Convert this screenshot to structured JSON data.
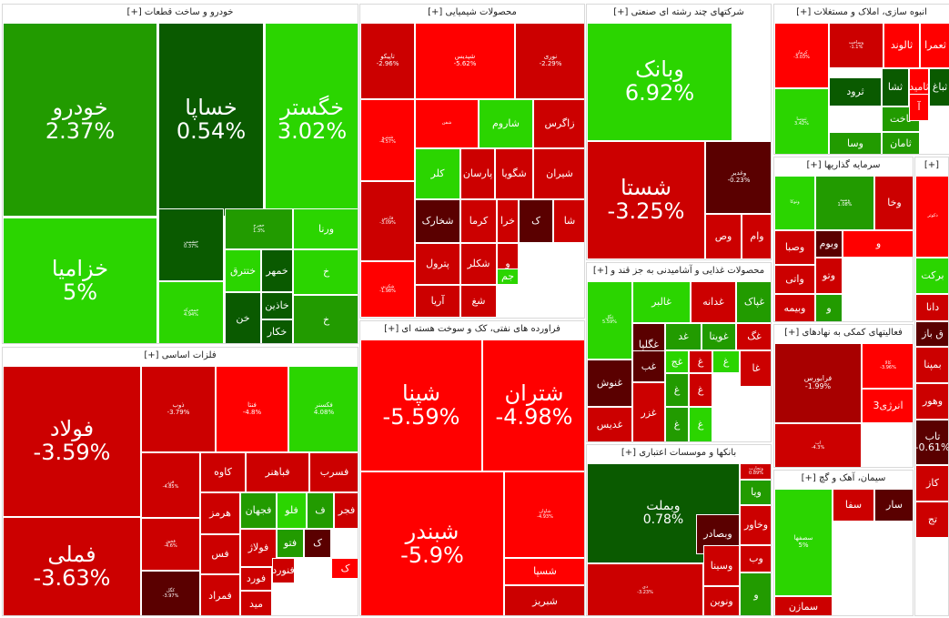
{
  "chart_data": {
    "type": "treemap",
    "colors": {
      "positive_strong": "#2bd500",
      "positive_mid": "#229b00",
      "positive_dark": "#0a5a00",
      "negative_strong": "#ff0000",
      "negative_mid": "#cc0000",
      "negative_dark": "#5a0000"
    },
    "sectors": [
      {
        "name": "خودرو و ساخت قطعات [+]",
        "stocks": [
          {
            "name": "خودرو",
            "change": "2.37%"
          },
          {
            "name": "خساپا",
            "change": "0.54%"
          },
          {
            "name": "خگستر",
            "change": "3.02%"
          },
          {
            "name": "خزامیا",
            "change": "5%"
          },
          {
            "name": "خشمبی",
            "change": "0.37%"
          },
          {
            "name": "خمحرکه",
            "change": "4.94%"
          },
          {
            "name": "خچرخ",
            "change": "1.3%"
          },
          {
            "name": "ورنا",
            "change": ""
          },
          {
            "name": "ختترق",
            "change": ""
          },
          {
            "name": "خمهر",
            "change": ""
          },
          {
            "name": "خاذین",
            "change": ""
          },
          {
            "name": "خکار",
            "change": ""
          },
          {
            "name": "خن",
            "change": ""
          },
          {
            "name": "خ",
            "change": ""
          },
          {
            "name": "خ",
            "change": ""
          }
        ]
      },
      {
        "name": "محصولات شیمیایی [+]",
        "stocks": [
          {
            "name": "تاپیکو",
            "change": "-2.96%"
          },
          {
            "name": "شپدیس",
            "change": "-5.62%"
          },
          {
            "name": "نوری",
            "change": "-2.29%"
          },
          {
            "name": "شپترو",
            "change": "-4.57%"
          },
          {
            "name": "شفن",
            "change": ""
          },
          {
            "name": "شاروم",
            "change": ""
          },
          {
            "name": "زاگرس",
            "change": ""
          },
          {
            "name": "فارس",
            "change": "-3.09%"
          },
          {
            "name": "کلر",
            "change": ""
          },
          {
            "name": "پارسان",
            "change": ""
          },
          {
            "name": "شگویا",
            "change": ""
          },
          {
            "name": "شیران",
            "change": ""
          },
          {
            "name": "شخارک",
            "change": ""
          },
          {
            "name": "کرما",
            "change": ""
          },
          {
            "name": "خرا",
            "change": ""
          },
          {
            "name": "ک",
            "change": ""
          },
          {
            "name": "شا",
            "change": ""
          },
          {
            "name": "پترول",
            "change": ""
          },
          {
            "name": "شکلر",
            "change": ""
          },
          {
            "name": "و",
            "change": ""
          },
          {
            "name": "جم",
            "change": ""
          },
          {
            "name": "آریا",
            "change": ""
          },
          {
            "name": "شغ",
            "change": ""
          },
          {
            "name": "شکربن",
            "change": "-1.98%"
          }
        ]
      },
      {
        "name": "فلزات اساسی [+]",
        "stocks": [
          {
            "name": "فولاد",
            "change": "-3.59%"
          },
          {
            "name": "ذوب",
            "change": "-3.79%"
          },
          {
            "name": "فنتا",
            "change": "-4.8%"
          },
          {
            "name": "فکسنر",
            "change": "4.08%"
          },
          {
            "name": "فملی",
            "change": "-3.63%"
          },
          {
            "name": "فزر",
            "change": "-4.85%"
          },
          {
            "name": "کاوه",
            "change": ""
          },
          {
            "name": "فباهنر",
            "change": ""
          },
          {
            "name": "فسرب",
            "change": ""
          },
          {
            "name": "هرمز",
            "change": ""
          },
          {
            "name": "فجهان",
            "change": ""
          },
          {
            "name": "فلو",
            "change": ""
          },
          {
            "name": "ف",
            "change": ""
          },
          {
            "name": "فجر",
            "change": ""
          },
          {
            "name": "فخوز",
            "change": "-4.6%"
          },
          {
            "name": "فس",
            "change": ""
          },
          {
            "name": "فولاژ",
            "change": ""
          },
          {
            "name": "فتو",
            "change": ""
          },
          {
            "name": "ک",
            "change": ""
          },
          {
            "name": "فورد",
            "change": ""
          },
          {
            "name": "فنورد",
            "change": ""
          },
          {
            "name": "کگل",
            "change": "-3.97%"
          },
          {
            "name": "فمراد",
            "change": ""
          },
          {
            "name": "مید",
            "change": ""
          },
          {
            "name": "ک",
            "change": ""
          }
        ]
      },
      {
        "name": "فراورده های نفتی، کک و سوخت هسته ای [+]",
        "stocks": [
          {
            "name": "شپنا",
            "change": "-5.59%"
          },
          {
            "name": "شتران",
            "change": "-4.98%"
          },
          {
            "name": "شبندر",
            "change": "-5.9%"
          },
          {
            "name": "شاوان",
            "change": "-4.93%"
          },
          {
            "name": "شسپا",
            "change": ""
          },
          {
            "name": "شبریز",
            "change": ""
          }
        ]
      },
      {
        "name": "شرکتهای چند رشته ای صنعتی [+]",
        "stocks": [
          {
            "name": "وبانک",
            "change": "6.92%"
          },
          {
            "name": "شستا",
            "change": "-3.25%"
          },
          {
            "name": "وغدیر",
            "change": "-0.23%"
          },
          {
            "name": "وام",
            "change": ""
          },
          {
            "name": "وص",
            "change": ""
          }
        ]
      },
      {
        "name": "محصولات غذایی و آشامیدنی به جز قند و [+]",
        "stocks": [
          {
            "name": "غالبر",
            "change": ""
          },
          {
            "name": "غدانه",
            "change": ""
          },
          {
            "name": "غپاک",
            "change": ""
          },
          {
            "name": "غگل",
            "change": "5.59%"
          },
          {
            "name": "غگلپا",
            "change": ""
          },
          {
            "name": "غد",
            "change": ""
          },
          {
            "name": "غویتا",
            "change": ""
          },
          {
            "name": "غگ",
            "change": ""
          },
          {
            "name": "غنوش",
            "change": ""
          },
          {
            "name": "غب",
            "change": ""
          },
          {
            "name": "غدیس",
            "change": ""
          },
          {
            "name": "غزر",
            "change": ""
          },
          {
            "name": "غج",
            "change": ""
          },
          {
            "name": "غ",
            "change": ""
          },
          {
            "name": "غ",
            "change": ""
          },
          {
            "name": "غا",
            "change": ""
          },
          {
            "name": "غ",
            "change": ""
          },
          {
            "name": "غ",
            "change": ""
          },
          {
            "name": "غ",
            "change": ""
          },
          {
            "name": "غ",
            "change": ""
          }
        ]
      },
      {
        "name": "بانکها و موسسات اعتباری [+]",
        "stocks": [
          {
            "name": "وبملت",
            "change": "0.78%"
          },
          {
            "name": "وتجارت",
            "change": "0.89%"
          },
          {
            "name": "ویا",
            "change": ""
          },
          {
            "name": "وخاور",
            "change": ""
          },
          {
            "name": "وبصادر",
            "change": ""
          },
          {
            "name": "دی",
            "change": "-3.23%"
          },
          {
            "name": "وب",
            "change": ""
          },
          {
            "name": "وسینا",
            "change": ""
          },
          {
            "name": "ونوین",
            "change": ""
          },
          {
            "name": "و",
            "change": ""
          }
        ]
      },
      {
        "name": "انبوه سازی، املاک و مستغلات [+]",
        "stocks": [
          {
            "name": "کرمان",
            "change": "-3.03%"
          },
          {
            "name": "وساخت",
            "change": "-1.1%"
          },
          {
            "name": "ثالوند",
            "change": ""
          },
          {
            "name": "ثعمرا",
            "change": ""
          },
          {
            "name": "ثنوسا",
            "change": "3.42%"
          },
          {
            "name": "ثرود",
            "change": ""
          },
          {
            "name": "ثشا",
            "change": ""
          },
          {
            "name": "ثامید",
            "change": ""
          },
          {
            "name": "ثباغ",
            "change": ""
          },
          {
            "name": "ثاخت",
            "change": ""
          },
          {
            "name": "آ",
            "change": ""
          },
          {
            "name": "وسا",
            "change": ""
          },
          {
            "name": "ثامان",
            "change": ""
          }
        ]
      },
      {
        "name": "سرمایه گذاریها [+]",
        "stocks": [
          {
            "name": "وتوکا",
            "change": ""
          },
          {
            "name": "وسپه",
            "change": "1.08%"
          },
          {
            "name": "وخا",
            "change": ""
          },
          {
            "name": "وصبا",
            "change": ""
          },
          {
            "name": "وبوم",
            "change": ""
          },
          {
            "name": "و",
            "change": ""
          },
          {
            "name": "وتو",
            "change": ""
          },
          {
            "name": "واتی",
            "change": ""
          },
          {
            "name": "وبیمه",
            "change": ""
          },
          {
            "name": "و",
            "change": ""
          }
        ]
      },
      {
        "name": "فعالیتهای کمکی به نهادهای [+]",
        "stocks": [
          {
            "name": "فرابورس",
            "change": "-1.99%"
          },
          {
            "name": "کالا",
            "change": "-3.96%"
          },
          {
            "name": "انرژی3",
            "change": ""
          },
          {
            "name": "اب",
            "change": "-4.3%"
          }
        ]
      },
      {
        "name": "سیمان، آهک و گچ [+]",
        "stocks": [
          {
            "name": "سفا",
            "change": ""
          },
          {
            "name": "سار",
            "change": ""
          },
          {
            "name": "سصفها",
            "change": "5%"
          },
          {
            "name": "سمازن",
            "change": ""
          }
        ]
      },
      {
        "name": "[+]",
        "stocks": [
          {
            "name": "دکوثر",
            "change": ""
          },
          {
            "name": "برکت",
            "change": ""
          },
          {
            "name": "دانا",
            "change": ""
          },
          {
            "name": "ق باز",
            "change": ""
          },
          {
            "name": "بمپنا",
            "change": ""
          },
          {
            "name": "وهور",
            "change": ""
          },
          {
            "name": "تاب",
            "change": "-0.61%"
          },
          {
            "name": "کاز",
            "change": ""
          },
          {
            "name": "تج",
            "change": ""
          }
        ]
      }
    ]
  }
}
